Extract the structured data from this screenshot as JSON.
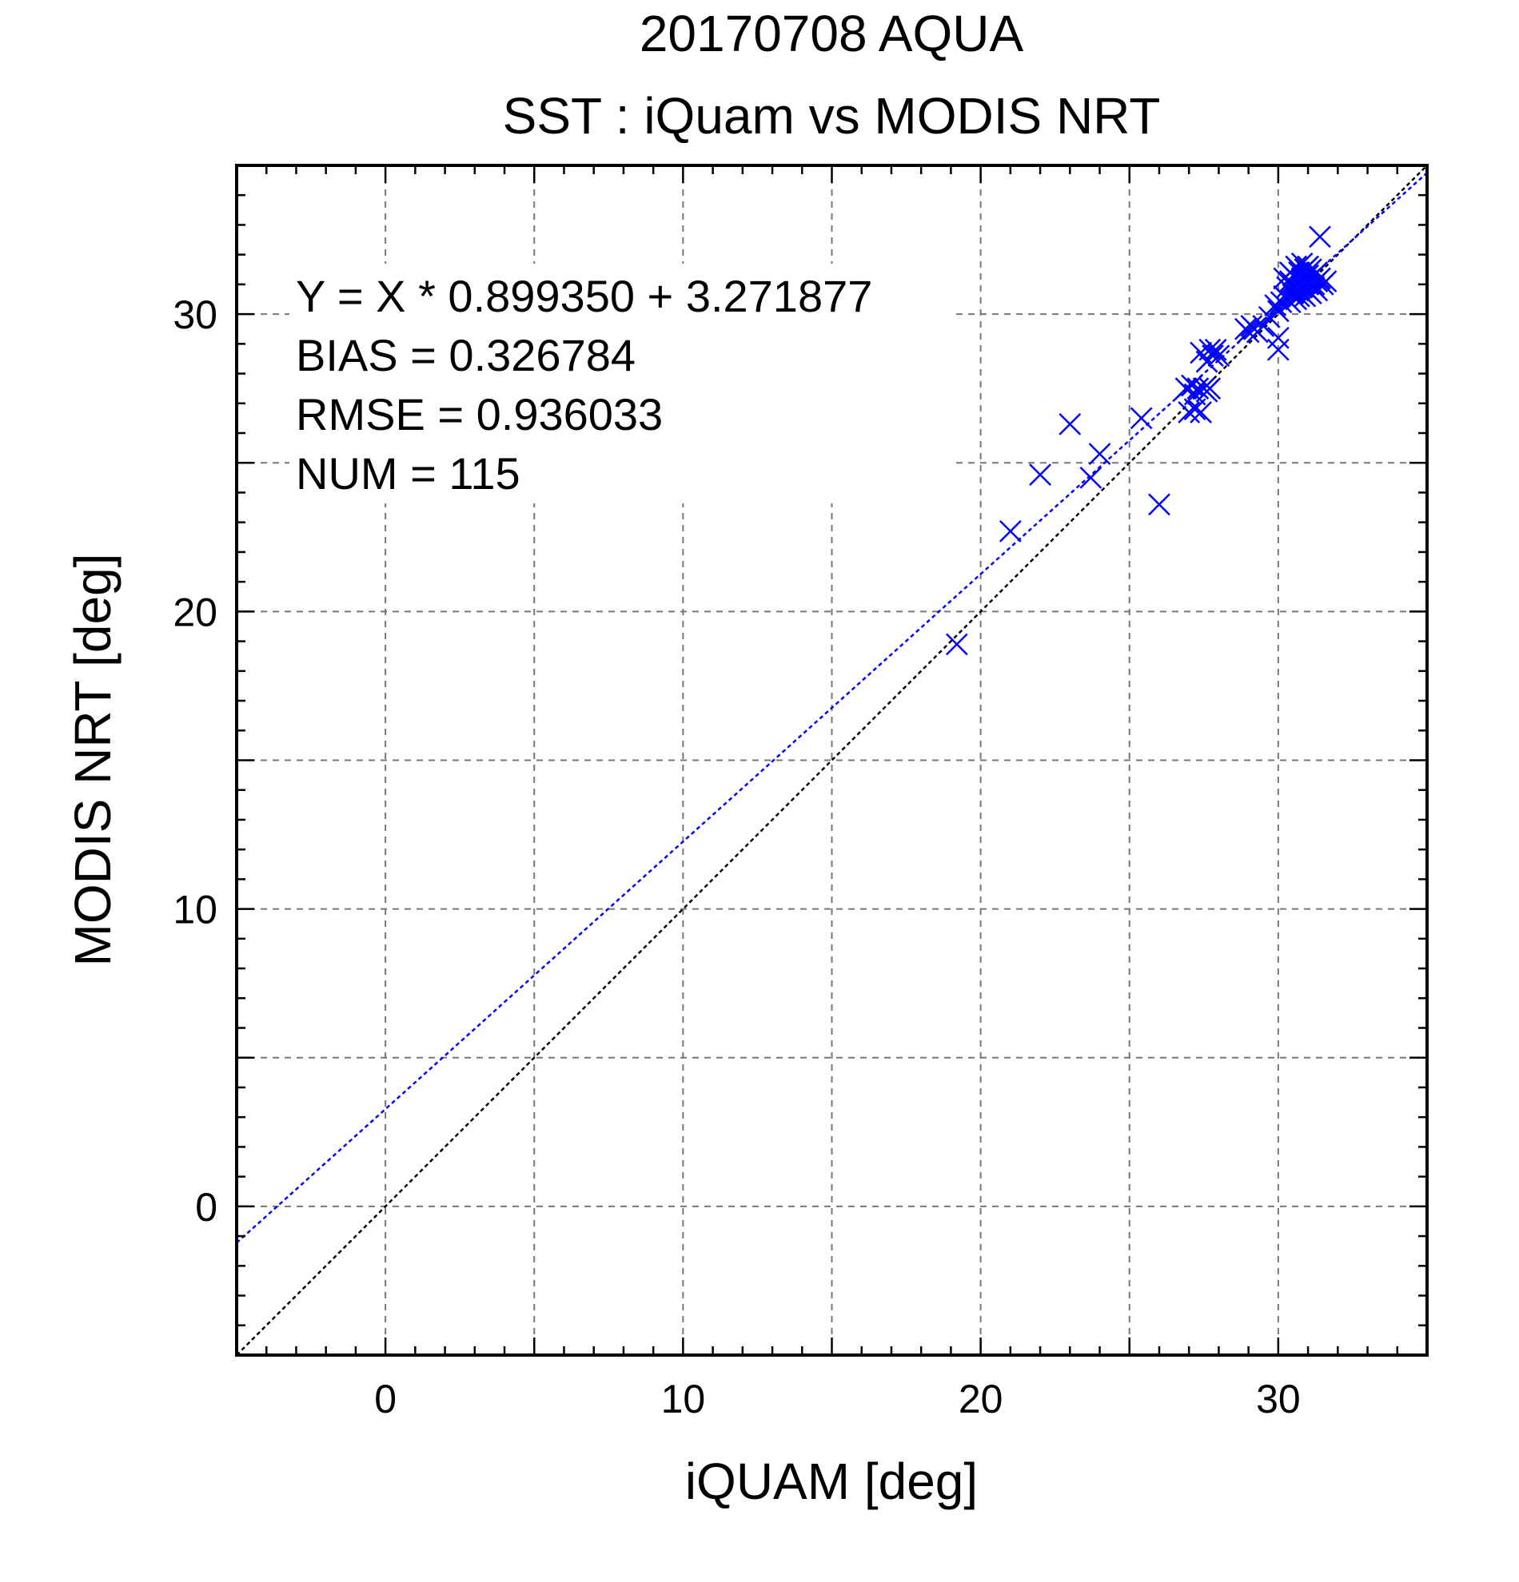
{
  "chart_data": {
    "type": "scatter",
    "title": "20170708 AQUA",
    "subtitle": "SST : iQuam vs MODIS NRT",
    "xlabel": "iQUAM [deg]",
    "ylabel": "MODIS NRT [deg]",
    "xlim": [
      -5,
      35
    ],
    "ylim": [
      -5,
      35
    ],
    "x_ticks": [
      0,
      10,
      20,
      30
    ],
    "y_ticks": [
      0,
      10,
      20,
      30
    ],
    "grid": true,
    "annotations": [
      "Y = X * 0.899350 + 3.271877",
      "BIAS = 0.326784",
      "RMSE = 0.936033",
      "NUM = 115"
    ],
    "marker_color": "#0000ff",
    "fit_line": {
      "slope": 0.89935,
      "intercept": 3.271877,
      "color": "#0000ff"
    },
    "identity_line": {
      "slope": 1,
      "intercept": 0,
      "color": "#000000"
    },
    "points": [
      [
        19.2,
        18.9
      ],
      [
        21.0,
        22.7
      ],
      [
        22.0,
        24.6
      ],
      [
        23.0,
        26.3
      ],
      [
        23.7,
        24.5
      ],
      [
        24.0,
        25.3
      ],
      [
        25.4,
        26.5
      ],
      [
        26.0,
        23.6
      ],
      [
        26.9,
        27.5
      ],
      [
        27.0,
        26.7
      ],
      [
        27.1,
        27.6
      ],
      [
        27.2,
        27.3
      ],
      [
        27.2,
        26.8
      ],
      [
        27.3,
        27.5
      ],
      [
        27.4,
        26.7
      ],
      [
        27.4,
        28.7
      ],
      [
        27.5,
        27.5
      ],
      [
        27.6,
        27.4
      ],
      [
        27.6,
        28.4
      ],
      [
        27.7,
        28.8
      ],
      [
        27.7,
        27.5
      ],
      [
        27.8,
        28.6
      ],
      [
        27.9,
        28.8
      ],
      [
        28.0,
        28.6
      ],
      [
        28.9,
        29.5
      ],
      [
        29.0,
        29.4
      ],
      [
        29.1,
        29.6
      ],
      [
        29.2,
        29.5
      ],
      [
        29.3,
        29.4
      ],
      [
        29.5,
        29.6
      ],
      [
        29.7,
        29.9
      ],
      [
        29.9,
        30.3
      ],
      [
        30.0,
        28.8
      ],
      [
        30.0,
        29.2
      ],
      [
        30.0,
        30.1
      ],
      [
        30.1,
        30.4
      ],
      [
        30.2,
        30.6
      ],
      [
        30.2,
        31.2
      ],
      [
        30.3,
        30.9
      ],
      [
        30.3,
        30.5
      ],
      [
        30.4,
        31.4
      ],
      [
        30.4,
        31.1
      ],
      [
        30.4,
        30.8
      ],
      [
        30.4,
        30.4
      ],
      [
        30.5,
        30.7
      ],
      [
        30.5,
        31.0
      ],
      [
        30.5,
        31.3
      ],
      [
        30.6,
        30.5
      ],
      [
        30.6,
        30.9
      ],
      [
        30.6,
        31.6
      ],
      [
        30.6,
        31.2
      ],
      [
        30.7,
        30.8
      ],
      [
        30.7,
        31.4
      ],
      [
        30.7,
        30.6
      ],
      [
        30.7,
        31.1
      ],
      [
        30.8,
        30.7
      ],
      [
        30.8,
        31.2
      ],
      [
        30.8,
        31.7
      ],
      [
        30.8,
        30.9
      ],
      [
        30.9,
        31.5
      ],
      [
        30.9,
        30.6
      ],
      [
        30.9,
        31.1
      ],
      [
        30.9,
        30.9
      ],
      [
        31.0,
        31.3
      ],
      [
        31.0,
        30.8
      ],
      [
        31.0,
        31.6
      ],
      [
        31.0,
        31.0
      ],
      [
        31.1,
        30.7
      ],
      [
        31.1,
        31.2
      ],
      [
        31.1,
        31.5
      ],
      [
        31.2,
        31.0
      ],
      [
        31.2,
        31.3
      ],
      [
        31.2,
        30.9
      ],
      [
        31.3,
        31.1
      ],
      [
        31.3,
        31.4
      ],
      [
        31.3,
        30.8
      ],
      [
        31.4,
        31.2
      ],
      [
        31.5,
        31.0
      ],
      [
        31.6,
        31.1
      ],
      [
        31.4,
        32.6
      ]
    ]
  }
}
